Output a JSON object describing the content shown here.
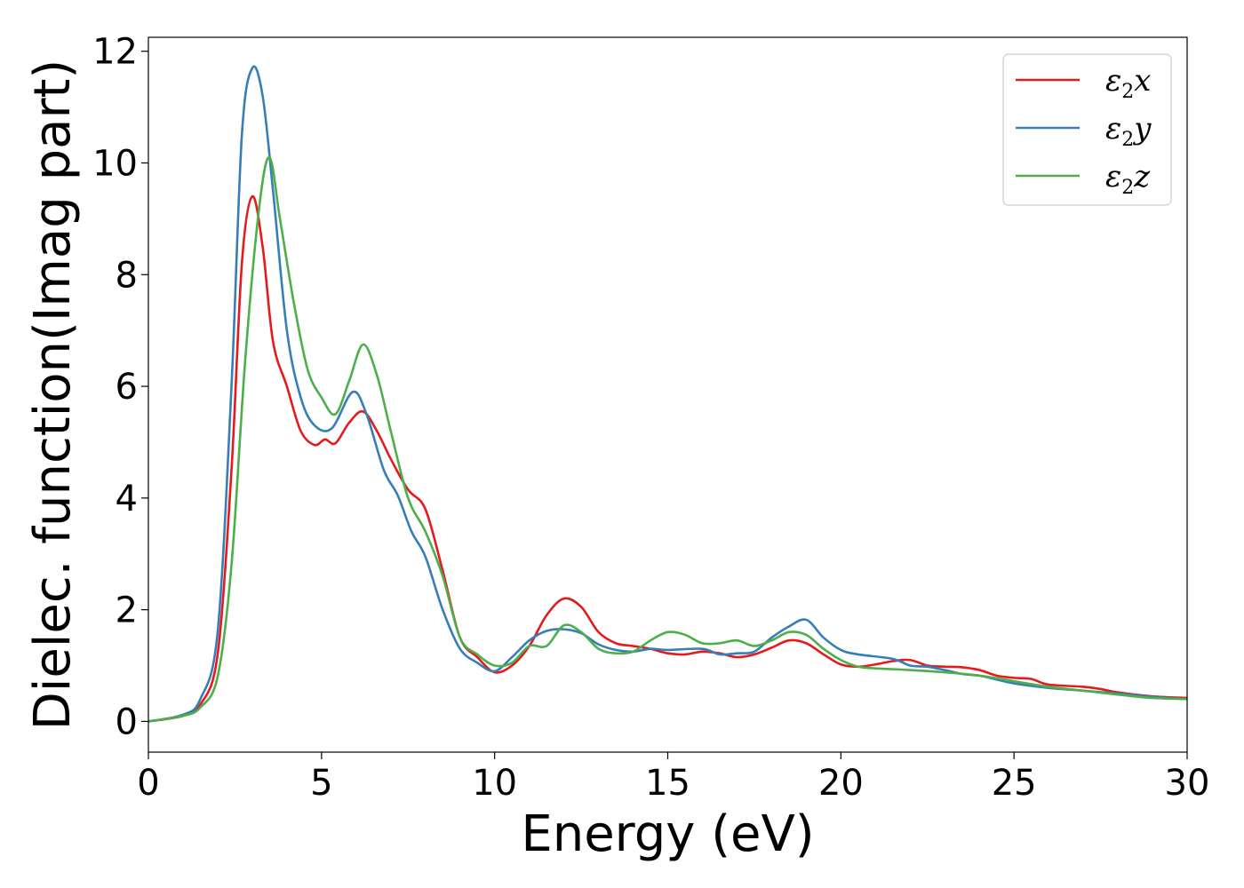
{
  "chart_data": {
    "type": "line",
    "xlabel": "Energy (eV)",
    "ylabel": "Dielec. function(Imag part)",
    "xlim": [
      0,
      30
    ],
    "ylim": [
      -0.55,
      12.25
    ],
    "xticks": [
      0,
      5,
      10,
      15,
      20,
      25,
      30
    ],
    "xtick_labels": [
      "0",
      "5",
      "10",
      "15",
      "20",
      "25",
      "30"
    ],
    "yticks": [
      0,
      2,
      4,
      6,
      8,
      10,
      12
    ],
    "ytick_labels": [
      "0",
      "2",
      "4",
      "6",
      "8",
      "10",
      "12"
    ],
    "grid": false,
    "legend_position": "top-right",
    "series": [
      {
        "name": "ε₂x",
        "legend": {
          "main": "ε",
          "sub": "2",
          "suffix": "x"
        },
        "color": "#e41a1c",
        "points": [
          [
            0,
            0
          ],
          [
            1,
            0.1
          ],
          [
            1.5,
            0.3
          ],
          [
            2,
            1.2
          ],
          [
            2.4,
            4.5
          ],
          [
            2.7,
            8.2
          ],
          [
            3,
            9.4
          ],
          [
            3.3,
            8.5
          ],
          [
            3.6,
            6.8
          ],
          [
            4,
            6.0
          ],
          [
            4.4,
            5.2
          ],
          [
            4.8,
            4.95
          ],
          [
            5.1,
            5.05
          ],
          [
            5.4,
            4.98
          ],
          [
            5.8,
            5.35
          ],
          [
            6.2,
            5.55
          ],
          [
            6.6,
            5.2
          ],
          [
            7,
            4.7
          ],
          [
            7.5,
            4.15
          ],
          [
            8,
            3.8
          ],
          [
            8.5,
            2.7
          ],
          [
            9,
            1.5
          ],
          [
            9.5,
            1.15
          ],
          [
            10,
            0.88
          ],
          [
            10.5,
            1.0
          ],
          [
            11,
            1.35
          ],
          [
            11.5,
            1.9
          ],
          [
            12,
            2.2
          ],
          [
            12.5,
            2.05
          ],
          [
            13,
            1.6
          ],
          [
            13.5,
            1.4
          ],
          [
            14,
            1.35
          ],
          [
            14.5,
            1.3
          ],
          [
            15,
            1.22
          ],
          [
            15.5,
            1.2
          ],
          [
            16,
            1.25
          ],
          [
            16.5,
            1.22
          ],
          [
            17,
            1.15
          ],
          [
            17.5,
            1.2
          ],
          [
            18,
            1.32
          ],
          [
            18.5,
            1.45
          ],
          [
            19,
            1.4
          ],
          [
            19.5,
            1.2
          ],
          [
            20,
            1.02
          ],
          [
            20.5,
            0.98
          ],
          [
            21,
            1.02
          ],
          [
            21.5,
            1.08
          ],
          [
            22,
            1.1
          ],
          [
            22.5,
            1.0
          ],
          [
            23,
            0.98
          ],
          [
            23.5,
            0.97
          ],
          [
            24,
            0.92
          ],
          [
            24.5,
            0.82
          ],
          [
            25,
            0.78
          ],
          [
            25.5,
            0.76
          ],
          [
            26,
            0.66
          ],
          [
            27,
            0.62
          ],
          [
            27.5,
            0.58
          ],
          [
            28,
            0.52
          ],
          [
            29,
            0.45
          ],
          [
            30,
            0.42
          ]
        ]
      },
      {
        "name": "ε₂y",
        "legend": {
          "main": "ε",
          "sub": "2",
          "suffix": "y"
        },
        "color": "#377eb8",
        "points": [
          [
            0,
            0
          ],
          [
            1,
            0.12
          ],
          [
            1.5,
            0.4
          ],
          [
            2,
            1.6
          ],
          [
            2.4,
            6.0
          ],
          [
            2.7,
            10.5
          ],
          [
            3,
            11.7
          ],
          [
            3.3,
            11.2
          ],
          [
            3.6,
            9.5
          ],
          [
            4,
            7.0
          ],
          [
            4.4,
            5.8
          ],
          [
            4.8,
            5.3
          ],
          [
            5.3,
            5.25
          ],
          [
            5.9,
            5.9
          ],
          [
            6.3,
            5.5
          ],
          [
            6.8,
            4.5
          ],
          [
            7.2,
            4.05
          ],
          [
            7.6,
            3.4
          ],
          [
            8,
            2.95
          ],
          [
            8.5,
            2.0
          ],
          [
            9,
            1.3
          ],
          [
            9.5,
            1.05
          ],
          [
            10,
            0.9
          ],
          [
            10.5,
            1.15
          ],
          [
            11,
            1.45
          ],
          [
            11.5,
            1.62
          ],
          [
            12,
            1.65
          ],
          [
            12.5,
            1.58
          ],
          [
            13,
            1.38
          ],
          [
            13.5,
            1.28
          ],
          [
            14,
            1.25
          ],
          [
            14.5,
            1.3
          ],
          [
            15,
            1.28
          ],
          [
            16,
            1.3
          ],
          [
            16.5,
            1.2
          ],
          [
            17,
            1.22
          ],
          [
            17.5,
            1.25
          ],
          [
            18,
            1.5
          ],
          [
            18.5,
            1.7
          ],
          [
            19,
            1.82
          ],
          [
            19.5,
            1.5
          ],
          [
            20,
            1.28
          ],
          [
            20.5,
            1.2
          ],
          [
            21.5,
            1.12
          ],
          [
            22,
            1.0
          ],
          [
            22.5,
            0.98
          ],
          [
            23,
            0.92
          ],
          [
            23.5,
            0.85
          ],
          [
            24,
            0.82
          ],
          [
            24.5,
            0.75
          ],
          [
            25,
            0.68
          ],
          [
            26,
            0.6
          ],
          [
            27,
            0.55
          ],
          [
            28,
            0.5
          ],
          [
            29,
            0.44
          ],
          [
            30,
            0.4
          ]
        ]
      },
      {
        "name": "ε₂z",
        "legend": {
          "main": "ε",
          "sub": "2",
          "suffix": "z"
        },
        "color": "#4daf4a",
        "points": [
          [
            0,
            0
          ],
          [
            1,
            0.1
          ],
          [
            1.5,
            0.25
          ],
          [
            2,
            0.8
          ],
          [
            2.4,
            2.8
          ],
          [
            2.8,
            6.5
          ],
          [
            3.2,
            9.2
          ],
          [
            3.5,
            10.1
          ],
          [
            3.8,
            9.0
          ],
          [
            4.2,
            7.5
          ],
          [
            4.6,
            6.3
          ],
          [
            5,
            5.8
          ],
          [
            5.4,
            5.5
          ],
          [
            5.8,
            6.1
          ],
          [
            6.2,
            6.75
          ],
          [
            6.6,
            6.2
          ],
          [
            7,
            5.2
          ],
          [
            7.5,
            4.0
          ],
          [
            8,
            3.4
          ],
          [
            8.5,
            2.6
          ],
          [
            9,
            1.5
          ],
          [
            9.5,
            1.2
          ],
          [
            10,
            1.0
          ],
          [
            10.5,
            1.05
          ],
          [
            11,
            1.35
          ],
          [
            11.5,
            1.35
          ],
          [
            12,
            1.72
          ],
          [
            12.5,
            1.6
          ],
          [
            13,
            1.3
          ],
          [
            13.5,
            1.22
          ],
          [
            14,
            1.25
          ],
          [
            14.5,
            1.45
          ],
          [
            15,
            1.6
          ],
          [
            15.5,
            1.55
          ],
          [
            16,
            1.4
          ],
          [
            16.5,
            1.4
          ],
          [
            17,
            1.45
          ],
          [
            17.5,
            1.35
          ],
          [
            18,
            1.45
          ],
          [
            18.5,
            1.6
          ],
          [
            19,
            1.55
          ],
          [
            19.5,
            1.3
          ],
          [
            20,
            1.1
          ],
          [
            20.5,
            0.98
          ],
          [
            21,
            0.95
          ],
          [
            22,
            0.92
          ],
          [
            23,
            0.88
          ],
          [
            24,
            0.82
          ],
          [
            25,
            0.72
          ],
          [
            26,
            0.62
          ],
          [
            27,
            0.55
          ],
          [
            28,
            0.48
          ],
          [
            29,
            0.42
          ],
          [
            30,
            0.4
          ]
        ]
      }
    ]
  }
}
